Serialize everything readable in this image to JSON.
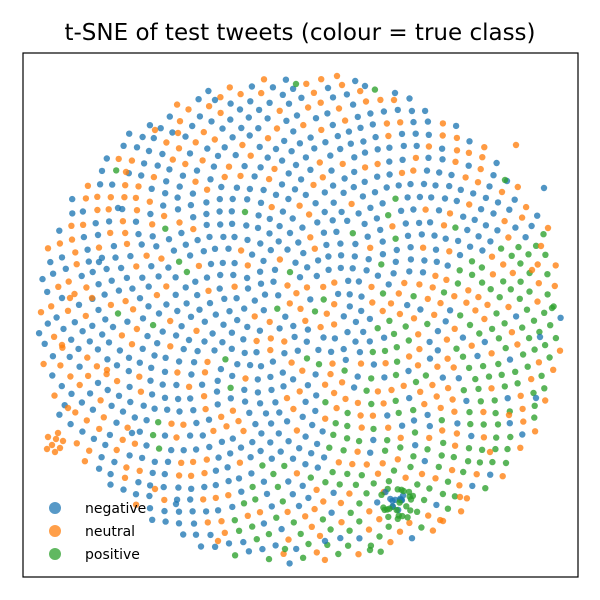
{
  "chart_data": {
    "type": "scatter",
    "title": "t-SNE of test tweets (colour = true class)",
    "xlabel": "",
    "ylabel": "",
    "axis_ticks": false,
    "grid": false,
    "legend_position": "lower-left",
    "series": [
      {
        "name": "negative",
        "color": "#1f77b4",
        "cluster": "dense disc centred slightly left of middle"
      },
      {
        "name": "neutral",
        "color": "#ff7f0e",
        "cluster": "ring around the disc plus small group at far left"
      },
      {
        "name": "positive",
        "color": "#2ca02c",
        "cluster": "lower-right and bottom of the disc"
      }
    ]
  }
}
